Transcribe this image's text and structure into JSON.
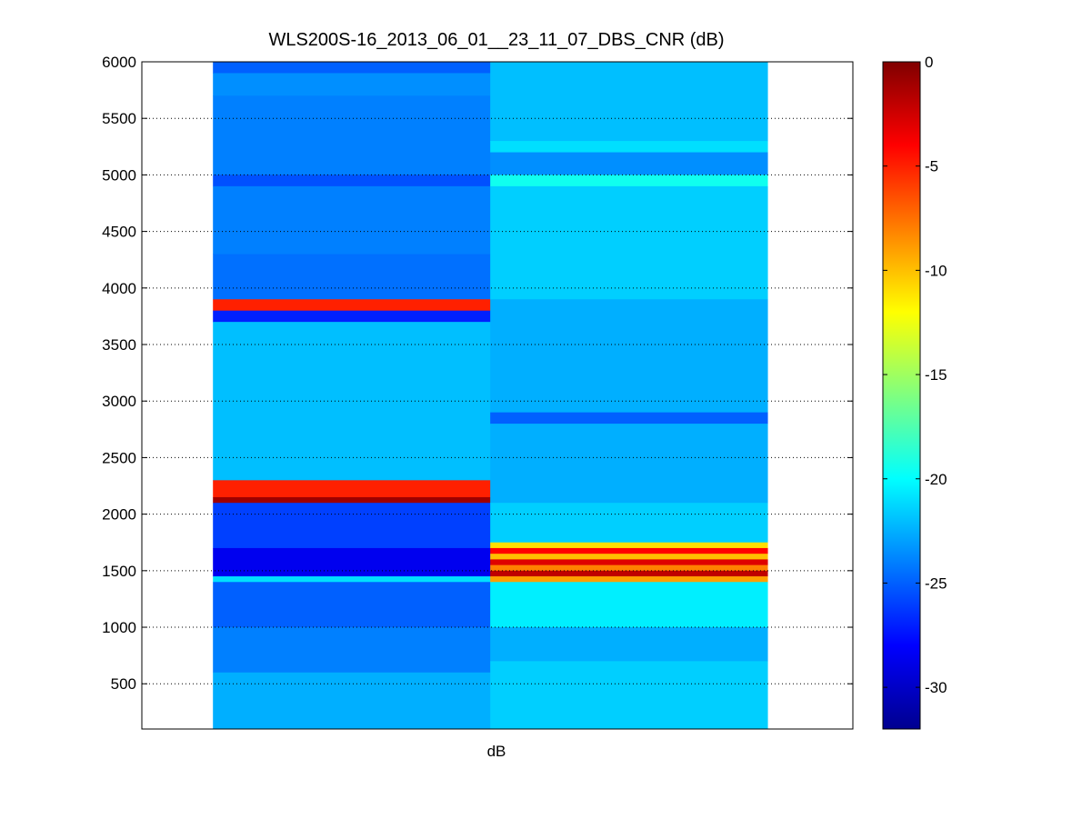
{
  "chart_data": {
    "type": "heatmap",
    "title": "WLS200S-16_2013_06_01__23_11_07_DBS_CNR (dB)",
    "xlabel": "dB",
    "ylabel": "",
    "xlim": [
      0,
      2
    ],
    "ylim": [
      100,
      6000
    ],
    "yticks": [
      500,
      1000,
      1500,
      2000,
      2500,
      3000,
      3500,
      4000,
      4500,
      5000,
      5500,
      6000
    ],
    "ytick_labels": [
      "500",
      "1000",
      "1500",
      "2000",
      "2500",
      "3000",
      "3500",
      "4000",
      "4500",
      "5000",
      "5500",
      "6000"
    ],
    "grid": "y-dotted",
    "colormap": "jet",
    "clim": [
      -32,
      0
    ],
    "colorbar_ticks": [
      0,
      -5,
      -10,
      -15,
      -20,
      -25,
      -30
    ],
    "colorbar_tick_labels": [
      "0",
      "-5",
      "-10",
      "-15",
      "-20",
      "-25",
      "-30"
    ],
    "columns": [
      {
        "name": "column-1",
        "x_range": [
          0.2,
          0.98
        ],
        "cells": [
          {
            "y0": 5900,
            "y1": 6000,
            "value": -25
          },
          {
            "y0": 5700,
            "y1": 5900,
            "value": -23.5
          },
          {
            "y0": 5500,
            "y1": 5700,
            "value": -24
          },
          {
            "y0": 5000,
            "y1": 5500,
            "value": -24
          },
          {
            "y0": 4900,
            "y1": 5000,
            "value": -25.5
          },
          {
            "y0": 4300,
            "y1": 4900,
            "value": -24
          },
          {
            "y0": 3900,
            "y1": 4300,
            "value": -24.5
          },
          {
            "y0": 3800,
            "y1": 3900,
            "value": -5
          },
          {
            "y0": 3700,
            "y1": 3800,
            "value": -27
          },
          {
            "y0": 2300,
            "y1": 3700,
            "value": -22
          },
          {
            "y0": 2150,
            "y1": 2300,
            "value": -5
          },
          {
            "y0": 2100,
            "y1": 2150,
            "value": -1
          },
          {
            "y0": 1700,
            "y1": 2100,
            "value": -26
          },
          {
            "y0": 1450,
            "y1": 1700,
            "value": -28.5
          },
          {
            "y0": 1400,
            "y1": 1450,
            "value": -21
          },
          {
            "y0": 1000,
            "y1": 1400,
            "value": -25
          },
          {
            "y0": 600,
            "y1": 1000,
            "value": -24
          },
          {
            "y0": 100,
            "y1": 600,
            "value": -22.5
          }
        ]
      },
      {
        "name": "column-2",
        "x_range": [
          0.98,
          1.76
        ],
        "cells": [
          {
            "y0": 5300,
            "y1": 6000,
            "value": -22
          },
          {
            "y0": 5200,
            "y1": 5300,
            "value": -21
          },
          {
            "y0": 5000,
            "y1": 5200,
            "value": -23.5
          },
          {
            "y0": 4900,
            "y1": 5000,
            "value": -19.5
          },
          {
            "y0": 3900,
            "y1": 4900,
            "value": -21.5
          },
          {
            "y0": 3500,
            "y1": 3900,
            "value": -22.5
          },
          {
            "y0": 2900,
            "y1": 3500,
            "value": -22.5
          },
          {
            "y0": 2800,
            "y1": 2900,
            "value": -25
          },
          {
            "y0": 2100,
            "y1": 2800,
            "value": -22.5
          },
          {
            "y0": 1750,
            "y1": 2100,
            "value": -21.5
          },
          {
            "y0": 1700,
            "y1": 1750,
            "value": -11
          },
          {
            "y0": 1650,
            "y1": 1700,
            "value": -4
          },
          {
            "y0": 1600,
            "y1": 1650,
            "value": -10
          },
          {
            "y0": 1550,
            "y1": 1600,
            "value": -3
          },
          {
            "y0": 1500,
            "y1": 1550,
            "value": -8
          },
          {
            "y0": 1450,
            "y1": 1500,
            "value": -2
          },
          {
            "y0": 1400,
            "y1": 1450,
            "value": -9
          },
          {
            "y0": 1000,
            "y1": 1400,
            "value": -20.5
          },
          {
            "y0": 700,
            "y1": 1000,
            "value": -22.5
          },
          {
            "y0": 100,
            "y1": 700,
            "value": -21.5
          }
        ]
      }
    ]
  }
}
